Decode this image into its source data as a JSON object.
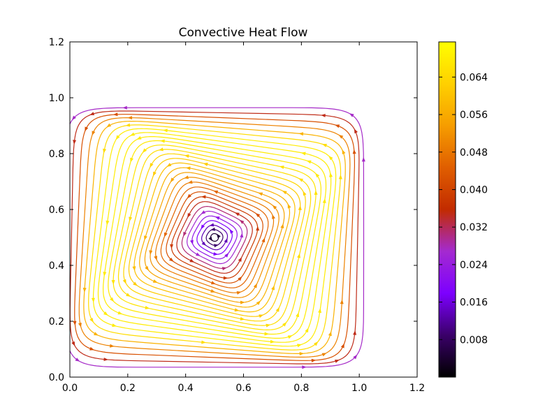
{
  "chart_data": {
    "type": "streamplot",
    "title": "Convective Heat Flow",
    "xlabel": "",
    "ylabel": "",
    "xlim": [
      0.0,
      1.2
    ],
    "ylim": [
      0.0,
      1.2
    ],
    "x_ticks": [
      0.0,
      0.2,
      0.4,
      0.6,
      0.8,
      1.0,
      1.2
    ],
    "y_ticks": [
      0.0,
      0.2,
      0.4,
      0.6,
      0.8,
      1.0,
      1.2
    ],
    "x_tick_labels": [
      "0.0",
      "0.2",
      "0.4",
      "0.6",
      "0.8",
      "1.0",
      "1.2"
    ],
    "y_tick_labels": [
      "0.0",
      "0.2",
      "0.4",
      "0.6",
      "0.8",
      "1.0",
      "1.2"
    ],
    "grid": false,
    "vortex_center": [
      0.5,
      0.5
    ],
    "flow_domain": [
      [
        0.0,
        1.0
      ],
      [
        0.0,
        1.0
      ]
    ],
    "rotation": "counterclockwise",
    "colormap": "gnuplot",
    "colorbar": {
      "min": 0.0,
      "max": 0.0715,
      "ticks": [
        0.008,
        0.016,
        0.024,
        0.032,
        0.04,
        0.048,
        0.056,
        0.064
      ],
      "tick_labels": [
        "0.008",
        "0.016",
        "0.024",
        "0.032",
        "0.040",
        "0.048",
        "0.056",
        "0.064"
      ],
      "stops": [
        "#000000",
        "#3a0069",
        "#7d00ff",
        "#a42ad0",
        "#c22b00",
        "#e05e00",
        "#f69d00",
        "#ffd000",
        "#ffff00"
      ]
    }
  }
}
